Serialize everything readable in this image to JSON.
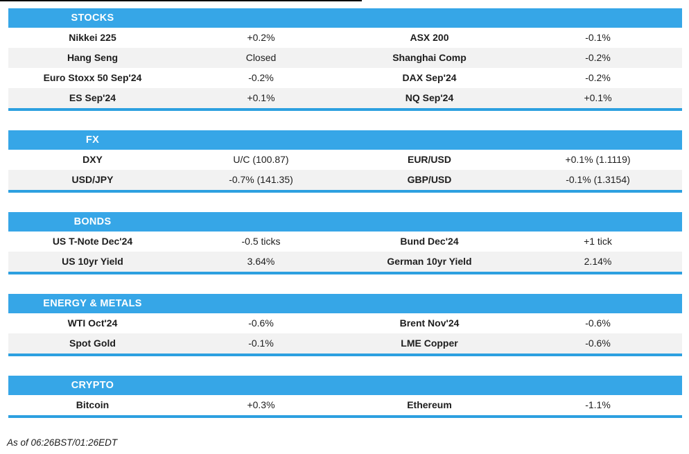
{
  "colors": {
    "accent": "#36a6e7",
    "section_border": "#2da0e0",
    "row_stripe": "#f2f2f2",
    "text": "#1d1d1d"
  },
  "sections": [
    {
      "title": "STOCKS",
      "rows": [
        [
          "Nikkei 225",
          "+0.2%",
          "ASX 200",
          "-0.1%"
        ],
        [
          "Hang Seng",
          "Closed",
          "Shanghai Comp",
          "-0.2%"
        ],
        [
          "Euro Stoxx 50 Sep'24",
          "-0.2%",
          "DAX Sep'24",
          "-0.2%"
        ],
        [
          "ES Sep'24",
          "+0.1%",
          "NQ Sep'24",
          "+0.1%"
        ]
      ]
    },
    {
      "title": "FX",
      "rows": [
        [
          "DXY",
          "U/C (100.87)",
          "EUR/USD",
          "+0.1% (1.1119)"
        ],
        [
          "USD/JPY",
          "-0.7% (141.35)",
          "GBP/USD",
          "-0.1% (1.3154)"
        ]
      ]
    },
    {
      "title": "BONDS",
      "rows": [
        [
          "US T-Note Dec'24",
          "-0.5 ticks",
          "Bund Dec'24",
          "+1 tick"
        ],
        [
          "US 10yr Yield",
          "3.64%",
          "German 10yr Yield",
          "2.14%"
        ]
      ]
    },
    {
      "title": "ENERGY & METALS",
      "rows": [
        [
          "WTI Oct'24",
          "-0.6%",
          "Brent Nov'24",
          "-0.6%"
        ],
        [
          "Spot Gold",
          "-0.1%",
          "LME Copper",
          "-0.6%"
        ]
      ]
    },
    {
      "title": "CRYPTO",
      "rows": [
        [
          "Bitcoin",
          "+0.3%",
          "Ethereum",
          "-1.1%"
        ]
      ]
    }
  ],
  "footer": {
    "as_of": "As of 06:26BST/01:26EDT"
  }
}
